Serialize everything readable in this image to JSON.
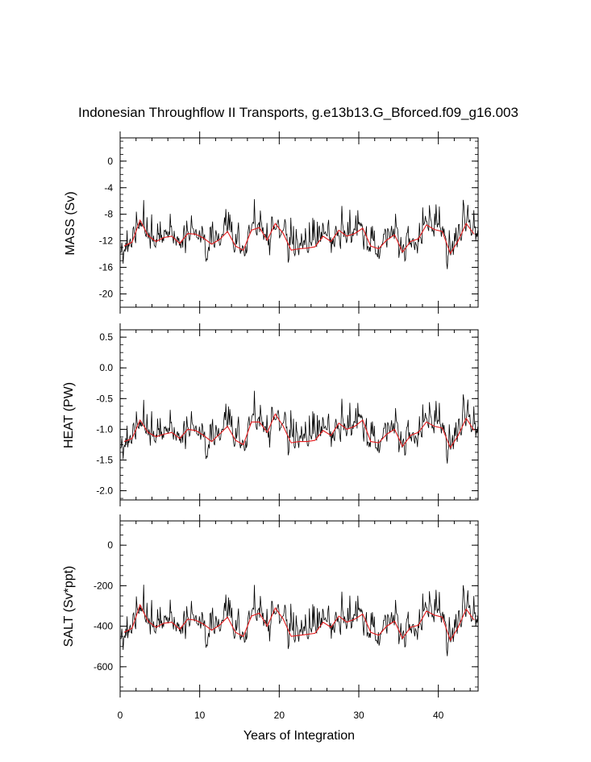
{
  "chart_data": {
    "type": "line",
    "title": "Indonesian Throughflow II Transports, g.e13b13.G_Bforced.f09_g16.003",
    "xlabel": "Years of Integration",
    "xlim": [
      0,
      45
    ],
    "x_ticks": [
      0,
      10,
      20,
      30,
      40
    ],
    "x_tick_labels": [
      "0",
      "10",
      "20",
      "30",
      "40"
    ],
    "series_colors": {
      "monthly": "#000000",
      "annual": "#e41a1c"
    },
    "annual_years": [
      0.5,
      1.5,
      2.5,
      3.5,
      4.5,
      5.5,
      6.5,
      7.5,
      8.5,
      9.5,
      10.5,
      11.5,
      12.5,
      13.5,
      14.5,
      15.5,
      16.5,
      17.5,
      18.5,
      19.5,
      20.5,
      21.5,
      22.5,
      23.5,
      24.5,
      25.5,
      26.5,
      27.5,
      28.5,
      29.5,
      30.5,
      31.5,
      32.5,
      33.5,
      34.5,
      35.5,
      36.5,
      37.5,
      38.5,
      39.5,
      40.5,
      41.5,
      42.5,
      43.5,
      44.5
    ],
    "panels": [
      {
        "ylabel": "MASS (Sv)",
        "ylim": [
          -22,
          3.5
        ],
        "yticks": [
          0,
          -4,
          -8,
          -12,
          -16,
          -20
        ],
        "ytick_labels": [
          "0",
          "-4",
          "-8",
          "-12",
          "-16",
          "-20"
        ],
        "annual": [
          -12.8,
          -12.2,
          -8.9,
          -11.2,
          -12.1,
          -11.5,
          -11.3,
          -12.4,
          -10.9,
          -11.0,
          -11.6,
          -12.5,
          -11.8,
          -10.6,
          -12.8,
          -13.4,
          -10.4,
          -10.0,
          -11.9,
          -9.4,
          -10.9,
          -13.4,
          -13.2,
          -13.1,
          -12.9,
          -11.3,
          -12.1,
          -10.4,
          -11.3,
          -10.9,
          -10.1,
          -12.8,
          -13.2,
          -11.9,
          -11.1,
          -13.7,
          -12.1,
          -11.7,
          -9.6,
          -10.3,
          -10.6,
          -13.9,
          -12.0,
          -9.4,
          -11.0
        ],
        "min_marker": -21.9,
        "max_marker": 3.5
      },
      {
        "ylabel": "HEAT (PW)",
        "ylim": [
          -2.15,
          0.62
        ],
        "yticks": [
          0.5,
          0.0,
          -0.5,
          -1.0,
          -1.5,
          -2.0
        ],
        "ytick_labels": [
          "0.5",
          "0.0",
          "-0.5",
          "-1.0",
          "-1.5",
          "-2.0"
        ],
        "annual": [
          -1.2,
          -1.15,
          -0.85,
          -1.05,
          -1.12,
          -1.08,
          -1.05,
          -1.15,
          -1.0,
          -1.02,
          -1.1,
          -1.2,
          -1.08,
          -0.95,
          -1.18,
          -1.25,
          -0.88,
          -0.88,
          -1.05,
          -0.75,
          -0.95,
          -1.22,
          -1.2,
          -1.2,
          -1.18,
          -1.02,
          -1.1,
          -0.9,
          -1.0,
          -0.95,
          -0.85,
          -1.2,
          -1.22,
          -1.08,
          -1.0,
          -1.28,
          -1.1,
          -1.05,
          -0.88,
          -0.95,
          -0.98,
          -1.3,
          -1.1,
          -0.82,
          -1.02
        ],
        "min_marker": -2.12,
        "max_marker": 0.6
      },
      {
        "ylabel": "SALT (Sv*ppt)",
        "ylim": [
          -720,
          120
        ],
        "yticks": [
          0,
          -200,
          -400,
          -600
        ],
        "ytick_labels": [
          "0",
          "-200",
          "-400",
          "-600"
        ],
        "annual": [
          -430,
          -410,
          -295,
          -375,
          -405,
          -385,
          -380,
          -415,
          -365,
          -370,
          -390,
          -420,
          -395,
          -355,
          -430,
          -450,
          -350,
          -335,
          -400,
          -310,
          -365,
          -450,
          -445,
          -440,
          -435,
          -380,
          -405,
          -350,
          -380,
          -365,
          -340,
          -430,
          -445,
          -400,
          -375,
          -460,
          -405,
          -395,
          -325,
          -345,
          -355,
          -470,
          -405,
          -315,
          -370
        ],
        "min_marker": -700,
        "max_marker": 115
      }
    ]
  }
}
